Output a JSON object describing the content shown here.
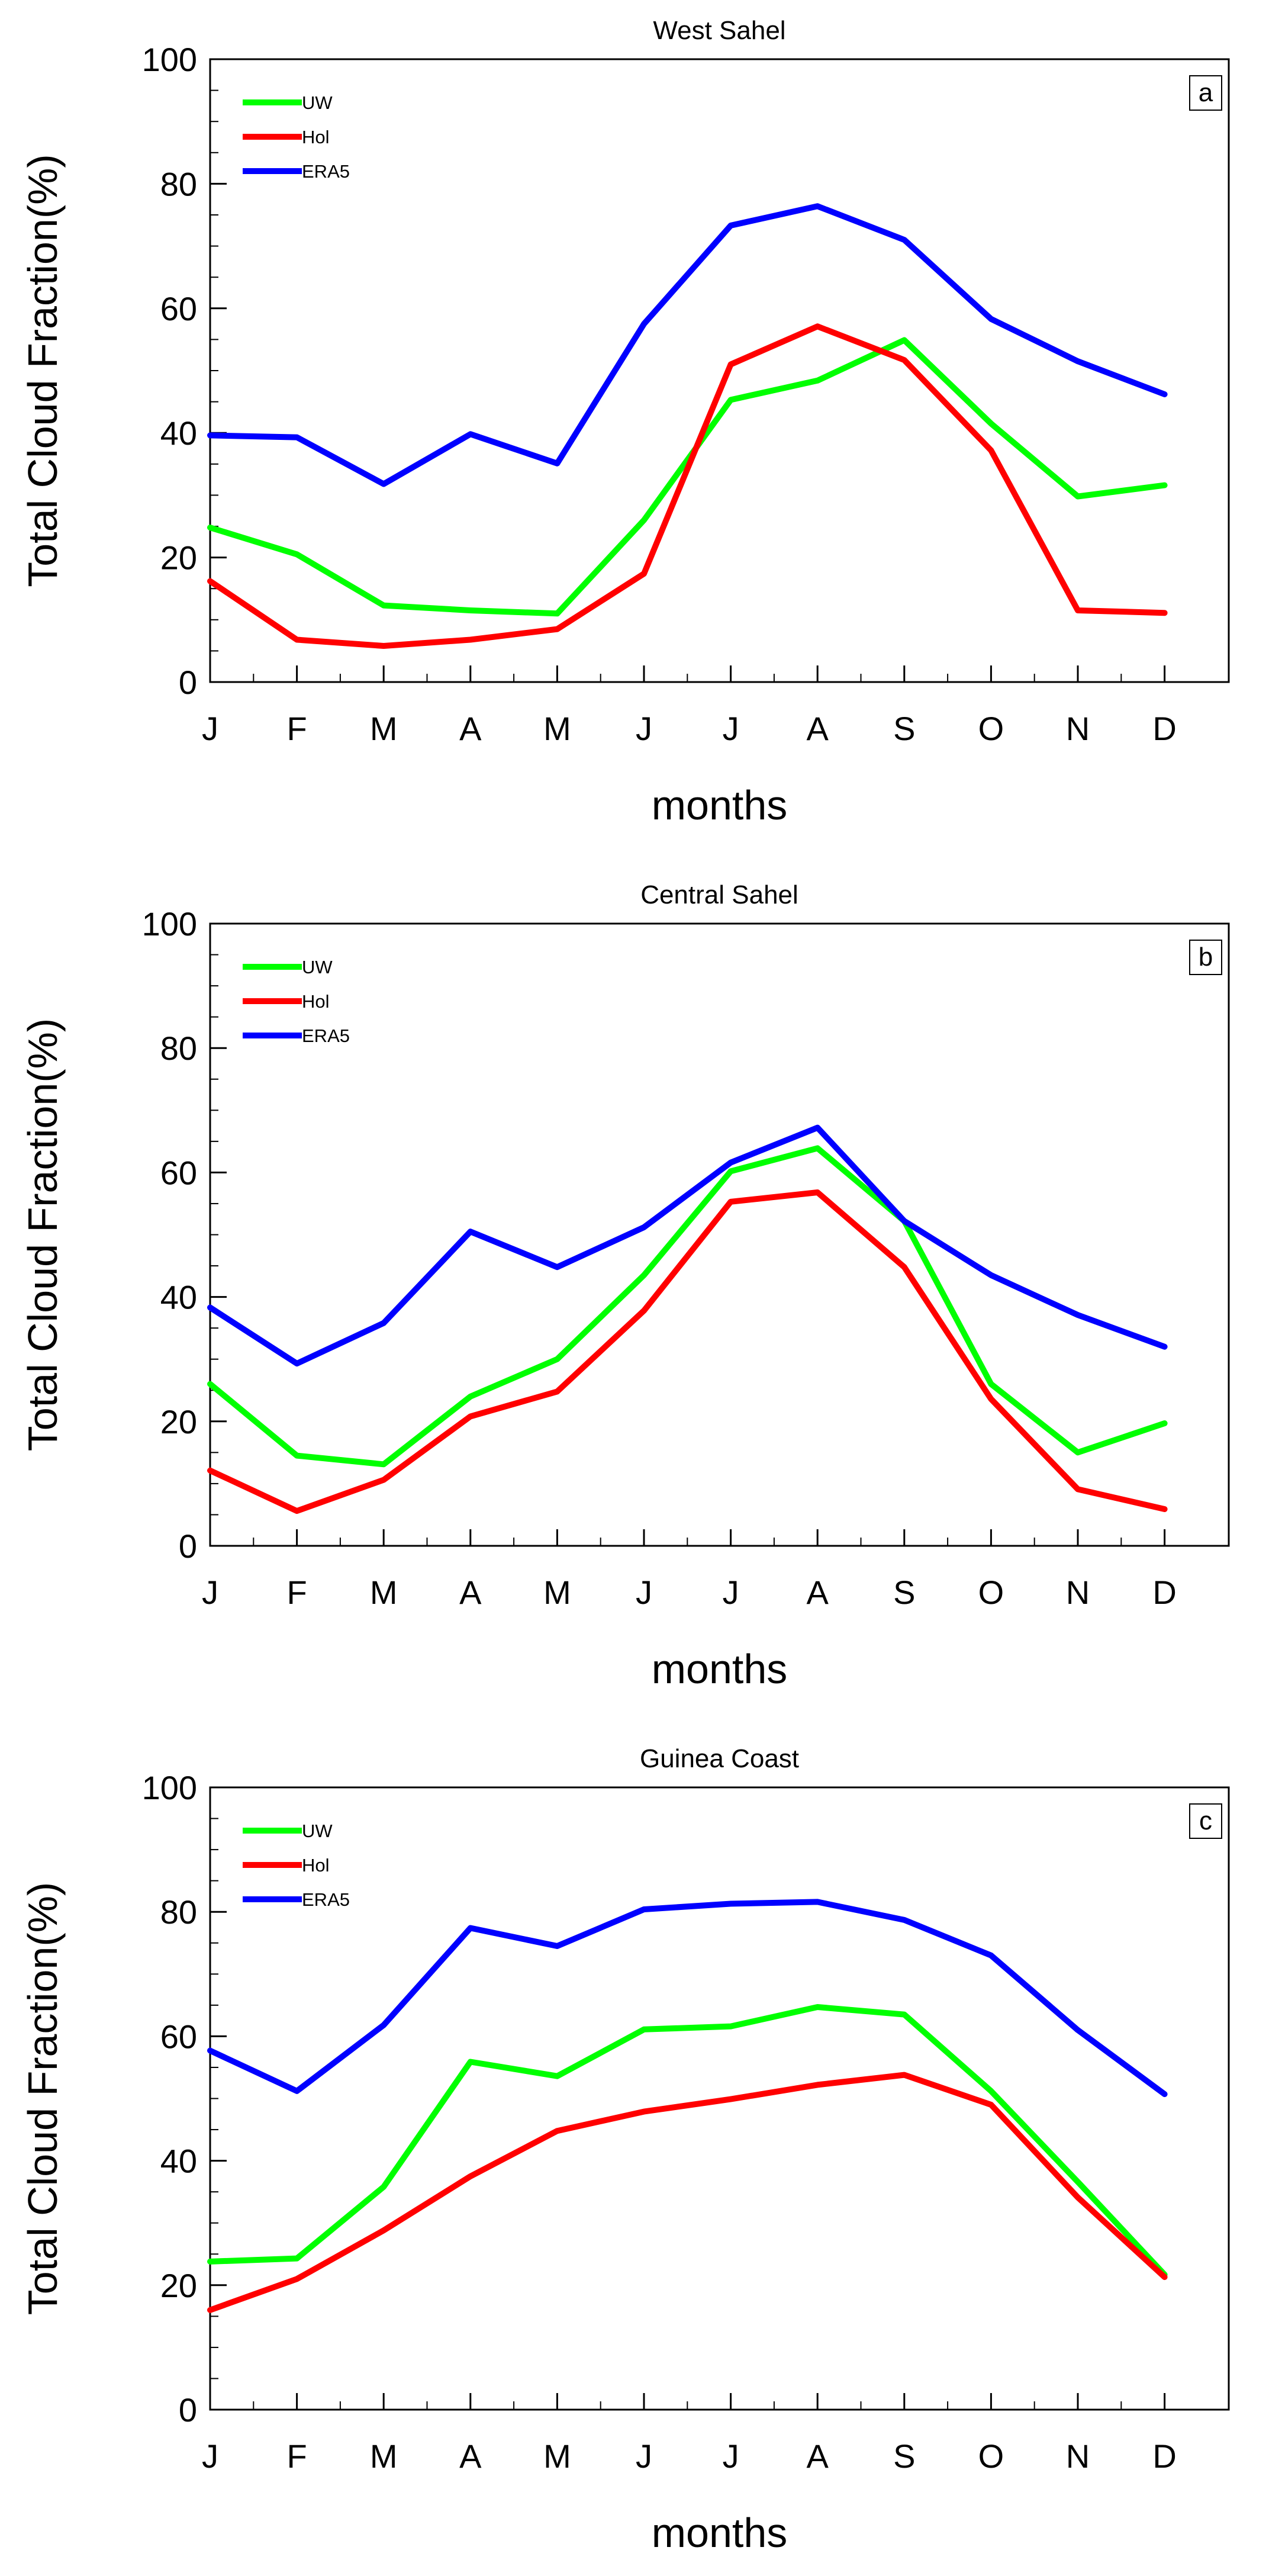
{
  "figure": {
    "colors": {
      "UW": "#00ff00",
      "Hol": "#ff0000",
      "ERA5": "#0000ff",
      "axis": "#000000",
      "background": "#ffffff"
    }
  },
  "chart_data": [
    {
      "type": "line",
      "title": "West Sahel",
      "panel_label": "a",
      "xlabel": "months",
      "ylabel": "Total Cloud Fraction(%)",
      "ylim": [
        0,
        100
      ],
      "yticks": [
        0,
        20,
        40,
        60,
        80,
        100
      ],
      "categories": [
        "J",
        "F",
        "M",
        "A",
        "M",
        "J",
        "J",
        "A",
        "S",
        "O",
        "N",
        "D"
      ],
      "legend_position": "top-left",
      "series": [
        {
          "name": "UW",
          "color": "#00ff00",
          "values": [
            24.8,
            20.5,
            12.3,
            11.5,
            11.0,
            26.0,
            45.3,
            48.4,
            54.9,
            41.5,
            29.8,
            31.6
          ]
        },
        {
          "name": "Hol",
          "color": "#ff0000",
          "values": [
            16.2,
            6.8,
            5.8,
            6.8,
            8.5,
            17.4,
            51.0,
            57.1,
            51.7,
            37.2,
            11.5,
            11.1
          ]
        },
        {
          "name": "ERA5",
          "color": "#0000ff",
          "values": [
            39.6,
            39.3,
            31.8,
            39.8,
            35.1,
            57.5,
            73.3,
            76.4,
            71.0,
            58.3,
            51.5,
            46.2
          ]
        }
      ]
    },
    {
      "type": "line",
      "title": "Central Sahel",
      "panel_label": "b",
      "xlabel": "months",
      "ylabel": "Total Cloud Fraction(%)",
      "ylim": [
        0,
        100
      ],
      "yticks": [
        0,
        20,
        40,
        60,
        80,
        100
      ],
      "categories": [
        "J",
        "F",
        "M",
        "A",
        "M",
        "J",
        "J",
        "A",
        "S",
        "O",
        "N",
        "D"
      ],
      "legend_position": "top-left",
      "series": [
        {
          "name": "UW",
          "color": "#00ff00",
          "values": [
            26.0,
            14.5,
            13.1,
            24.0,
            30.0,
            43.5,
            60.2,
            63.9,
            52.2,
            26.0,
            15.0,
            19.7
          ]
        },
        {
          "name": "Hol",
          "color": "#ff0000",
          "values": [
            12.1,
            5.6,
            10.6,
            20.8,
            24.8,
            37.8,
            55.3,
            56.8,
            44.8,
            23.6,
            9.1,
            5.9
          ]
        },
        {
          "name": "ERA5",
          "color": "#0000ff",
          "values": [
            38.3,
            29.3,
            35.8,
            50.5,
            44.8,
            51.2,
            61.6,
            67.2,
            52.2,
            43.5,
            37.1,
            32.0
          ]
        }
      ]
    },
    {
      "type": "line",
      "title": "Guinea Coast",
      "panel_label": "c",
      "xlabel": "months",
      "ylabel": "Total Cloud Fraction(%)",
      "ylim": [
        0,
        100
      ],
      "yticks": [
        0,
        20,
        40,
        60,
        80,
        100
      ],
      "categories": [
        "J",
        "F",
        "M",
        "A",
        "M",
        "J",
        "J",
        "A",
        "S",
        "O",
        "N",
        "D"
      ],
      "legend_position": "top-left",
      "series": [
        {
          "name": "UW",
          "color": "#00ff00",
          "values": [
            23.8,
            24.3,
            35.8,
            55.9,
            53.6,
            61.1,
            61.6,
            64.7,
            63.5,
            51.2,
            36.6,
            21.7
          ]
        },
        {
          "name": "Hol",
          "color": "#ff0000",
          "values": [
            16.0,
            21.0,
            28.8,
            37.5,
            44.8,
            47.9,
            49.9,
            52.2,
            53.8,
            49.0,
            34.1,
            21.3
          ]
        },
        {
          "name": "ERA5",
          "color": "#0000ff",
          "values": [
            57.7,
            51.2,
            61.8,
            77.4,
            74.5,
            80.4,
            81.3,
            81.6,
            78.7,
            73.0,
            61.0,
            50.7
          ]
        }
      ]
    }
  ]
}
